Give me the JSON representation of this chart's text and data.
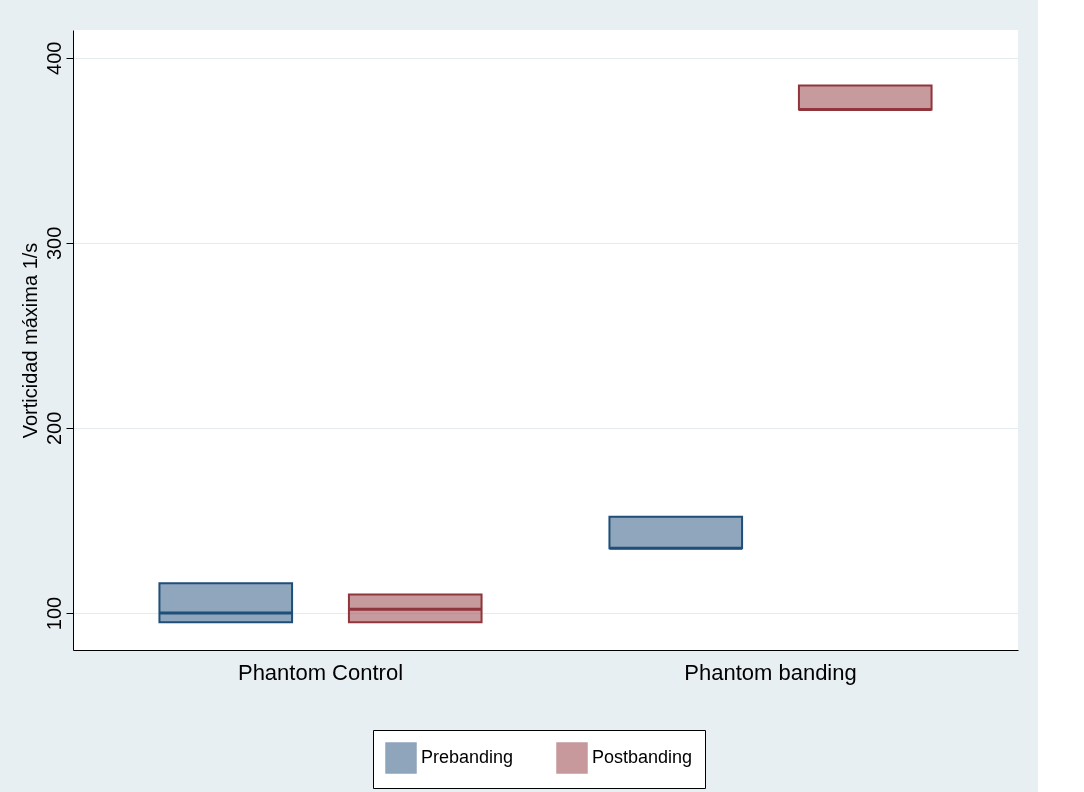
{
  "chart_data": {
    "type": "box",
    "ylabel": "Vorticidad máxima 1/s",
    "categories": [
      "Phantom Control",
      "Phantom banding"
    ],
    "series": [
      {
        "name": "Prebanding",
        "color": "#1f4e79",
        "boxes": [
          {
            "low": 95,
            "q1": 95,
            "median": 100,
            "q3": 116,
            "high": 116
          },
          {
            "low": 135,
            "q1": 135,
            "median": 135,
            "q3": 152,
            "high": 152
          }
        ]
      },
      {
        "name": "Postbanding",
        "color": "#90353b",
        "boxes": [
          {
            "low": 95,
            "q1": 95,
            "median": 102,
            "q3": 110,
            "high": 110
          },
          {
            "low": 372,
            "q1": 372,
            "median": 372,
            "q3": 385,
            "high": 385
          }
        ]
      }
    ],
    "ylim": [
      80,
      415
    ],
    "yticks": [
      100,
      200,
      300,
      400
    ],
    "grid": "y",
    "legend": "bottom"
  }
}
